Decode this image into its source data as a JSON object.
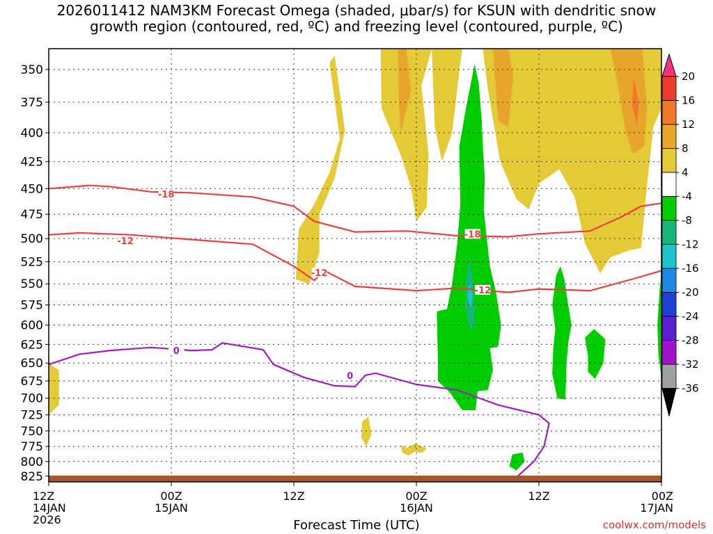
{
  "title_line1": "2026011412 NAM3KM Forecast Omega (shaded, μbar/s) for KSUN with dendritic snow",
  "title_line2": "growth region (contoured, red, ºC) and freezing level (contoured, purple, ºC)",
  "credit": "coolwx.com/models",
  "chart_data": {
    "type": "time-height cross section",
    "xlabel": "Forecast Time (UTC)",
    "x_ticks": [
      {
        "label": [
          "12Z",
          "14JAN",
          "2026"
        ],
        "hour": 0
      },
      {
        "label": [
          "00Z",
          "15JAN"
        ],
        "hour": 12
      },
      {
        "label": [
          "12Z"
        ],
        "hour": 24
      },
      {
        "label": [
          "00Z",
          "16JAN"
        ],
        "hour": 36
      },
      {
        "label": [
          "12Z"
        ],
        "hour": 48
      },
      {
        "label": [
          "00Z",
          "17JAN"
        ],
        "hour": 60
      }
    ],
    "xlim_hours": [
      0,
      60
    ],
    "y_ticks_mb": [
      350,
      375,
      400,
      425,
      450,
      475,
      500,
      525,
      550,
      575,
      600,
      625,
      650,
      675,
      700,
      725,
      750,
      775,
      800,
      825
    ],
    "ylim_mb": [
      335,
      835
    ],
    "y_scale": "log-pressure",
    "grid": true,
    "colorbar": {
      "units": "μbar/s",
      "labels": [
        "20",
        "16",
        "12",
        "8",
        "4",
        "-4",
        "-8",
        "-12",
        "-16",
        "-20",
        "-24",
        "-28",
        "-32",
        "-36"
      ],
      "colors": [
        "#f2337c",
        "#ee3d2d",
        "#f0782a",
        "#e8a52c",
        "#e3ca36",
        "#ffffff",
        "#00cc00",
        "#16b57a",
        "#1dc4c8",
        "#1e88e6",
        "#1f3fd9",
        "#5b1fcf",
        "#a013c8",
        "#a0a0a0",
        "#000000"
      ]
    },
    "temperature_contours": [
      {
        "label": "-18",
        "color": "#ee3d3d",
        "points": [
          [
            0,
            450
          ],
          [
            4,
            447
          ],
          [
            6,
            448
          ],
          [
            10,
            453
          ],
          [
            14,
            454
          ],
          [
            20,
            458
          ],
          [
            24,
            467
          ],
          [
            26,
            482
          ],
          [
            30,
            493
          ],
          [
            35,
            492
          ],
          [
            40,
            497
          ],
          [
            45,
            498
          ],
          [
            48,
            495
          ],
          [
            53,
            492
          ],
          [
            56,
            478
          ],
          [
            58,
            467
          ],
          [
            60,
            464
          ]
        ]
      },
      {
        "label": "-12",
        "color": "#ee3d3d",
        "points": [
          [
            0,
            496
          ],
          [
            3,
            494
          ],
          [
            8,
            496
          ],
          [
            14,
            501
          ],
          [
            20,
            506
          ],
          [
            24,
            530
          ],
          [
            26,
            546
          ],
          [
            27,
            535
          ],
          [
            30,
            553
          ],
          [
            36,
            558
          ],
          [
            40,
            555
          ],
          [
            45,
            560
          ],
          [
            48,
            556
          ],
          [
            53,
            558
          ],
          [
            57,
            545
          ],
          [
            60,
            535
          ]
        ]
      },
      {
        "label": "0",
        "color": "#a01bc8",
        "points": [
          [
            0,
            652
          ],
          [
            3,
            638
          ],
          [
            6,
            633
          ],
          [
            10,
            629
          ],
          [
            14,
            633
          ],
          [
            16,
            632
          ],
          [
            17,
            623
          ],
          [
            21,
            632
          ],
          [
            22,
            652
          ],
          [
            25,
            670
          ],
          [
            28,
            682
          ],
          [
            30,
            683
          ],
          [
            31,
            667
          ],
          [
            32,
            664
          ],
          [
            36,
            680
          ],
          [
            40,
            688
          ],
          [
            44,
            710
          ],
          [
            48,
            725
          ],
          [
            49,
            738
          ],
          [
            48.5,
            775
          ],
          [
            47.5,
            800
          ],
          [
            45.5,
            832
          ]
        ]
      }
    ],
    "surface_terrain": {
      "color": "#a5582e",
      "approx_mb": 830
    }
  }
}
